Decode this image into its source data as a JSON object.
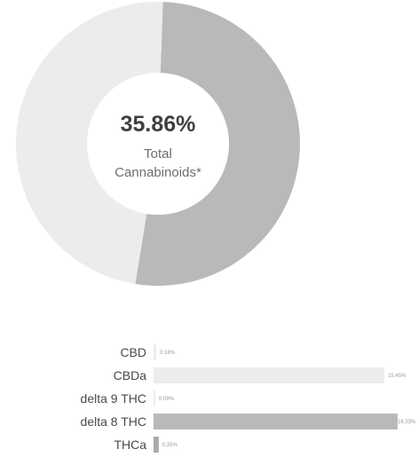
{
  "chart_data": [
    {
      "type": "pie",
      "variant": "donut",
      "center_value": "35.86%",
      "center_label_line1": "Total",
      "center_label_line2": "Cannabinoids*",
      "slices": [
        {
          "value": 52.0,
          "color": "#b9b9b9"
        },
        {
          "value": 48.0,
          "color": "#ececec"
        }
      ]
    },
    {
      "type": "bar",
      "orientation": "horizontal",
      "categories": [
        "CBD",
        "CBDa",
        "delta 9 THC",
        "delta 8 THC",
        "THCa"
      ],
      "values": [
        0.18,
        15.45,
        0.09,
        16.33,
        0.35
      ],
      "value_labels": [
        "0.18%",
        "15.45%",
        "0.09%",
        "16.33%",
        "0.35%"
      ],
      "colors": [
        "#ececec",
        "#ececec",
        "#ececec",
        "#b9b9b9",
        "#a9a9a9"
      ],
      "xlim": [
        0,
        16.33
      ],
      "grid": false
    }
  ]
}
